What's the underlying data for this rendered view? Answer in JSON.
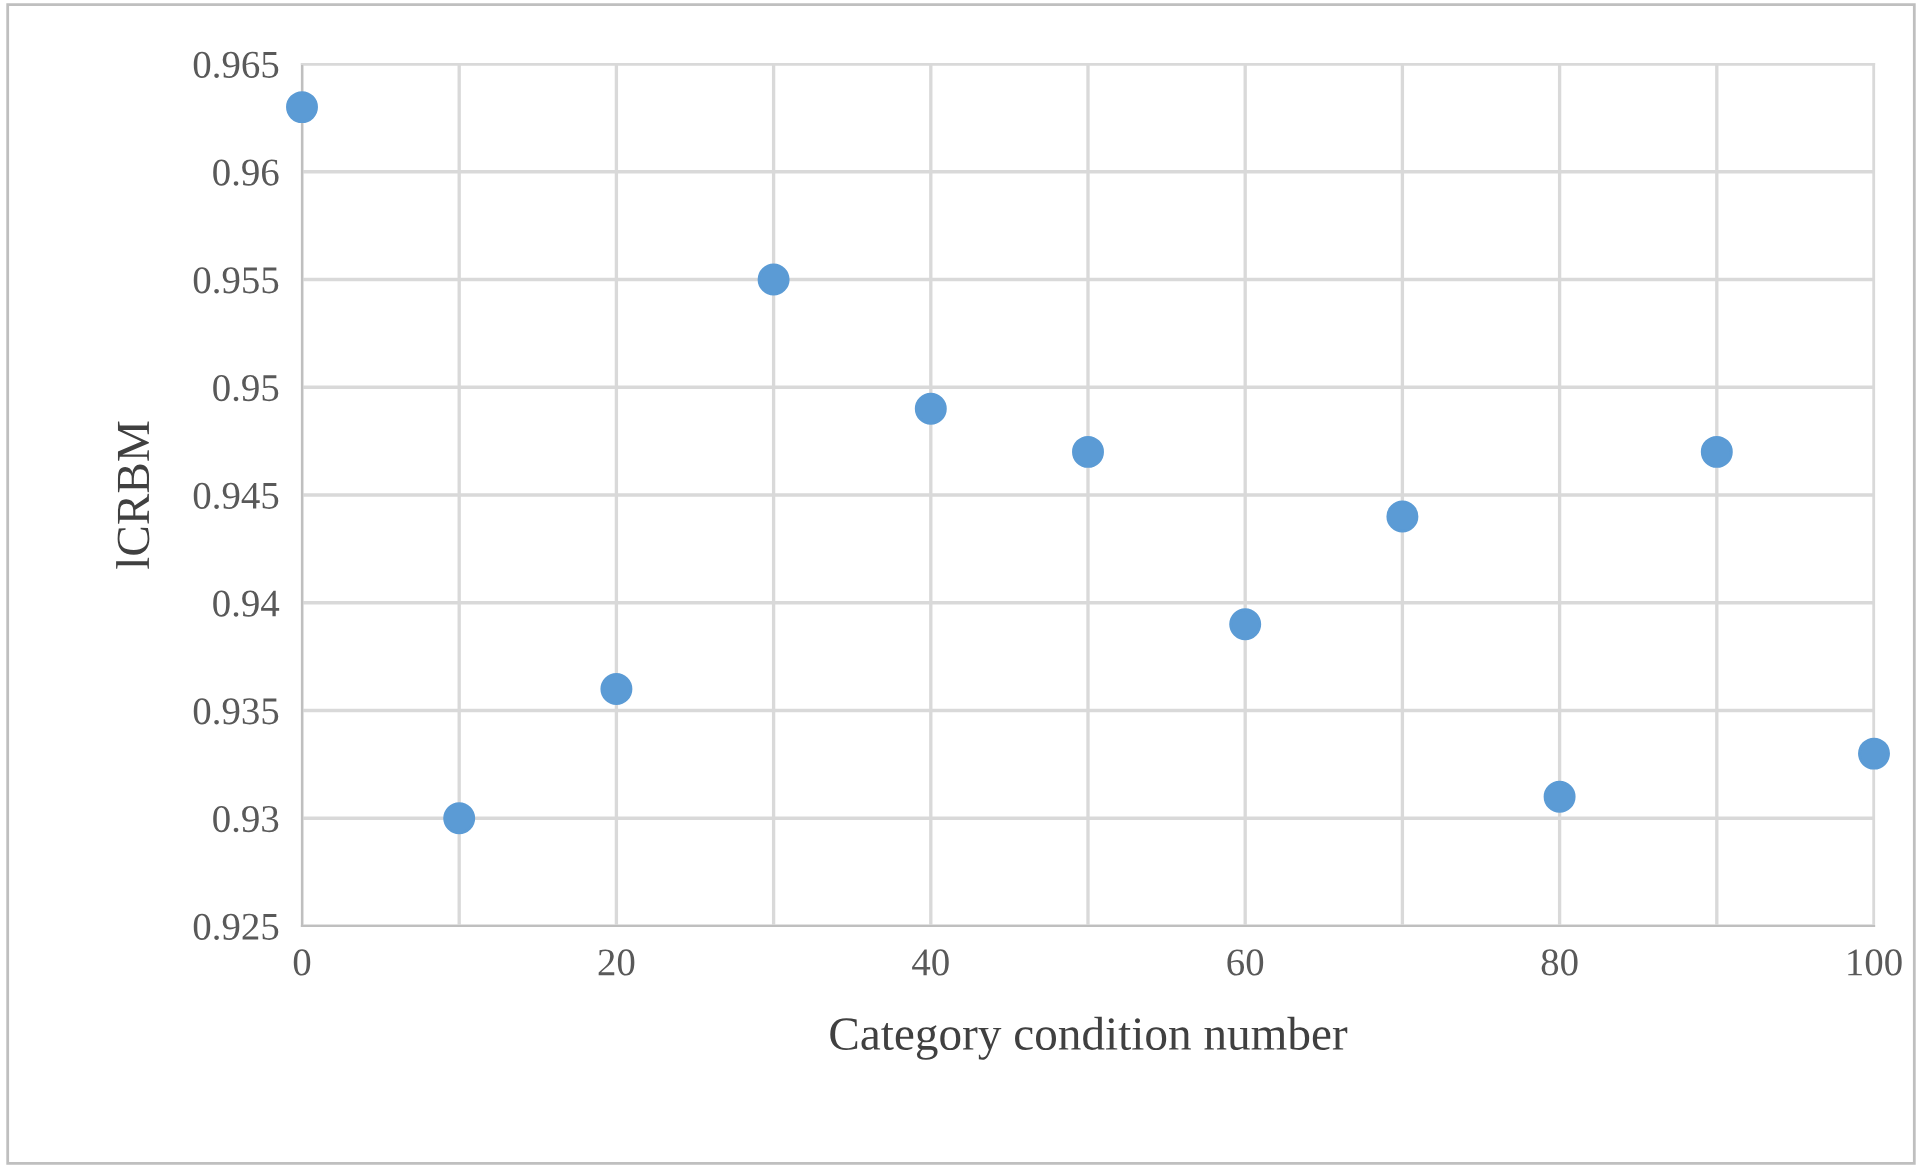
{
  "chart_data": {
    "type": "scatter",
    "xlabel": "Category condition number",
    "ylabel": "lCRBM",
    "x": [
      0,
      10,
      20,
      30,
      40,
      50,
      60,
      70,
      80,
      90,
      100
    ],
    "series": [
      {
        "color": "#5b9bd5",
        "values": [
          0.963,
          0.93,
          0.936,
          0.955,
          0.949,
          0.947,
          0.939,
          0.944,
          0.931,
          0.947,
          0.933
        ]
      }
    ],
    "xlim": [
      0,
      100
    ],
    "xticks": [
      0,
      {
        "value": 10,
        "label": null
      },
      20,
      {
        "value": 30,
        "label": null
      },
      40,
      {
        "value": 50,
        "label": null
      },
      60,
      {
        "value": 70,
        "label": null
      },
      80,
      {
        "value": 90,
        "label": null
      },
      100
    ],
    "ylim": [
      0.925,
      0.965
    ],
    "yticks": [
      0.925,
      0.93,
      0.935,
      0.94,
      0.945,
      0.95,
      0.955,
      0.96,
      0.965
    ],
    "grid": true,
    "marker": "circle"
  }
}
